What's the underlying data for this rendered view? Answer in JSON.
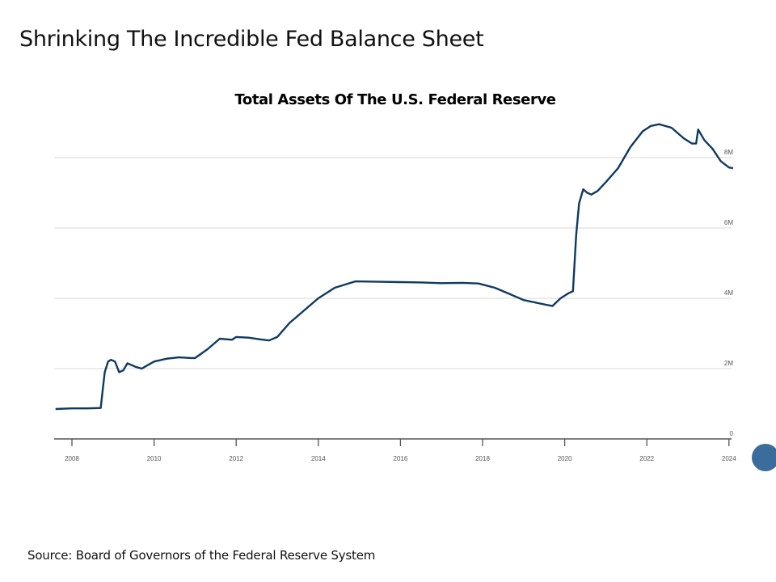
{
  "slide": {
    "title": "Shrinking The Incredible Fed Balance Sheet",
    "source": "Source: Board of Governors of the Federal Reserve System"
  },
  "chart_data": {
    "type": "line",
    "title": "Total Assets Of The U.S. Federal Reserve",
    "xlabel": "",
    "ylabel": "",
    "xlim": [
      2007.6,
      2024.1
    ],
    "ylim": [
      0,
      9
    ],
    "grid": true,
    "x_ticks": [
      2008,
      2010,
      2012,
      2014,
      2016,
      2018,
      2020,
      2022,
      2024
    ],
    "x_tick_labels": [
      "2008",
      "2010",
      "2012",
      "2014",
      "2016",
      "2018",
      "2020",
      "2022",
      "2024"
    ],
    "y_ticks": [
      0,
      2,
      4,
      6,
      8
    ],
    "y_tick_labels": [
      "0",
      "2M",
      "4M",
      "6M",
      "8M"
    ],
    "series": [
      {
        "name": "Total Assets",
        "color": "#0f3a60",
        "x": [
          2007.6,
          2008.0,
          2008.4,
          2008.7,
          2008.75,
          2008.8,
          2008.88,
          2008.95,
          2009.05,
          2009.15,
          2009.25,
          2009.35,
          2009.45,
          2009.55,
          2009.7,
          2009.85,
          2010.0,
          2010.3,
          2010.6,
          2010.9,
          2011.0,
          2011.3,
          2011.6,
          2011.9,
          2012.0,
          2012.3,
          2012.6,
          2012.8,
          2013.0,
          2013.3,
          2013.6,
          2014.0,
          2014.4,
          2014.9,
          2015.5,
          2016.0,
          2016.5,
          2017.0,
          2017.5,
          2017.9,
          2018.3,
          2018.7,
          2019.0,
          2019.4,
          2019.7,
          2019.9,
          2020.1,
          2020.2,
          2020.28,
          2020.35,
          2020.45,
          2020.55,
          2020.65,
          2020.8,
          2021.0,
          2021.3,
          2021.6,
          2021.9,
          2022.1,
          2022.3,
          2022.6,
          2022.9,
          2023.1,
          2023.2,
          2023.25,
          2023.4,
          2023.6,
          2023.8,
          2024.0,
          2024.1
        ],
        "values": [
          0.85,
          0.87,
          0.87,
          0.88,
          1.4,
          1.9,
          2.2,
          2.25,
          2.2,
          1.9,
          1.95,
          2.15,
          2.1,
          2.05,
          2.0,
          2.1,
          2.2,
          2.28,
          2.32,
          2.3,
          2.3,
          2.55,
          2.85,
          2.82,
          2.9,
          2.88,
          2.83,
          2.8,
          2.9,
          3.3,
          3.6,
          4.0,
          4.3,
          4.48,
          4.47,
          4.46,
          4.45,
          4.43,
          4.44,
          4.42,
          4.3,
          4.1,
          3.95,
          3.85,
          3.78,
          4.0,
          4.15,
          4.2,
          5.8,
          6.7,
          7.1,
          7.0,
          6.95,
          7.05,
          7.3,
          7.7,
          8.3,
          8.75,
          8.9,
          8.95,
          8.85,
          8.55,
          8.4,
          8.4,
          8.8,
          8.5,
          8.25,
          7.9,
          7.72,
          7.7
        ]
      }
    ]
  }
}
